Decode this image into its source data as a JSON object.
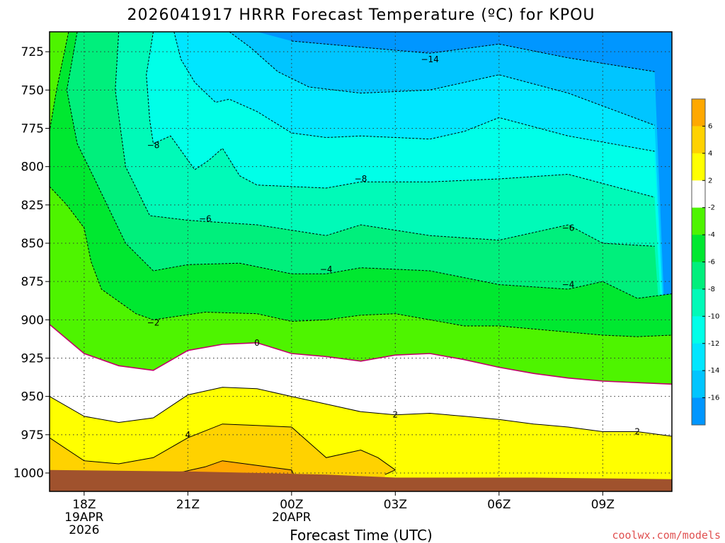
{
  "chart_data": {
    "type": "heatmap",
    "title": "2026041917 HRRR Forecast Temperature (ºC) for KPOU",
    "xlabel": "Forecast Time (UTC)",
    "ylabel": "",
    "x_ticks": [
      {
        "hour": 1,
        "lines": [
          "18Z",
          "19APR",
          "2026"
        ]
      },
      {
        "hour": 4,
        "lines": [
          "21Z"
        ]
      },
      {
        "hour": 7,
        "lines": [
          "00Z",
          "20APR"
        ]
      },
      {
        "hour": 10,
        "lines": [
          "03Z"
        ]
      },
      {
        "hour": 13,
        "lines": [
          "06Z"
        ]
      },
      {
        "hour": 16,
        "lines": [
          "09Z"
        ]
      }
    ],
    "xlim": [
      0,
      18
    ],
    "y_ticks": [
      725,
      750,
      775,
      800,
      825,
      850,
      875,
      900,
      925,
      950,
      975,
      1000
    ],
    "ylim": [
      712,
      1012
    ],
    "colorbar_labels": [
      "6",
      "4",
      "2",
      "-2",
      "-4",
      "-6",
      "-8",
      "-10",
      "-12",
      "-14",
      "-16"
    ],
    "colorbar_colors": [
      "#ffa800",
      "#ffd200",
      "#ffff00",
      "#ffffff",
      "#4ef400",
      "#00e830",
      "#00ef7c",
      "#00fab8",
      "#00ffe8",
      "#00e6ff",
      "#00c5ff",
      "#0096ff"
    ],
    "contours": [
      {
        "level": -14,
        "color": "#000000",
        "dashed": true,
        "points": [
          [
            7,
            718
          ],
          [
            9,
            722
          ],
          [
            11,
            726
          ],
          [
            13,
            720
          ],
          [
            15,
            729
          ],
          [
            17.5,
            738
          ]
        ]
      },
      {
        "level": -12,
        "color": "#000000",
        "dashed": true,
        "points": [
          [
            5.2,
            712
          ],
          [
            5.8,
            722
          ],
          [
            6.6,
            738
          ],
          [
            7.5,
            748
          ],
          [
            9,
            752
          ],
          [
            11,
            750
          ],
          [
            13,
            740
          ],
          [
            15,
            752
          ],
          [
            17.5,
            773
          ]
        ]
      },
      {
        "level": -10,
        "color": "#000000",
        "dashed": true,
        "points": [
          [
            3.6,
            712
          ],
          [
            3.8,
            730
          ],
          [
            4.2,
            745
          ],
          [
            4.8,
            758
          ],
          [
            5.2,
            756
          ],
          [
            6,
            764
          ],
          [
            7,
            778
          ],
          [
            8,
            781
          ],
          [
            9,
            780
          ],
          [
            11,
            782
          ],
          [
            12,
            777
          ],
          [
            13,
            768
          ],
          [
            15,
            780
          ],
          [
            17.5,
            790
          ]
        ]
      },
      {
        "level": -8,
        "color": "#000000",
        "dashed": true,
        "points": [
          [
            3,
            712
          ],
          [
            2.8,
            740
          ],
          [
            2.9,
            770
          ],
          [
            3,
            785
          ],
          [
            3.5,
            780
          ],
          [
            4.2,
            802
          ],
          [
            4.6,
            796
          ],
          [
            5,
            788
          ],
          [
            5.5,
            806
          ],
          [
            6,
            812
          ],
          [
            8,
            814
          ],
          [
            9,
            810
          ],
          [
            11,
            810
          ],
          [
            13,
            808
          ],
          [
            15,
            805
          ],
          [
            17.5,
            820
          ]
        ]
      },
      {
        "level": -6,
        "color": "#000000",
        "dashed": true,
        "points": [
          [
            2,
            712
          ],
          [
            1.9,
            750
          ],
          [
            2.2,
            800
          ],
          [
            2.9,
            832
          ],
          [
            4,
            835
          ],
          [
            6,
            838
          ],
          [
            8,
            845
          ],
          [
            9,
            838
          ],
          [
            11,
            845
          ],
          [
            13,
            848
          ],
          [
            15,
            838
          ],
          [
            16,
            850
          ],
          [
            17.5,
            852
          ]
        ]
      },
      {
        "level": -4,
        "color": "#000000",
        "dashed": true,
        "points": [
          [
            0.8,
            712
          ],
          [
            0.5,
            750
          ],
          [
            0.8,
            785
          ],
          [
            1.3,
            808
          ],
          [
            2.2,
            850
          ],
          [
            3,
            868
          ],
          [
            4,
            864
          ],
          [
            5.5,
            863
          ],
          [
            7,
            870
          ],
          [
            8,
            870
          ],
          [
            9,
            866
          ],
          [
            11,
            868
          ],
          [
            13,
            877
          ],
          [
            15,
            880
          ],
          [
            16,
            875
          ],
          [
            17,
            886
          ],
          [
            18,
            883
          ]
        ]
      },
      {
        "level": -2,
        "color": "#000000",
        "dashed": true,
        "points": [
          [
            0,
            777
          ],
          [
            0.2,
            750
          ],
          [
            0.55,
            712
          ]
        ]
      },
      {
        "level": -2,
        "color": "#000000",
        "dashed": true,
        "points": [
          [
            0,
            813
          ],
          [
            0.5,
            825
          ],
          [
            1,
            840
          ],
          [
            1.2,
            862
          ],
          [
            1.5,
            880
          ],
          [
            2.5,
            896
          ],
          [
            3,
            900
          ],
          [
            4.5,
            895
          ],
          [
            6,
            896
          ],
          [
            7,
            901
          ],
          [
            8,
            900
          ],
          [
            9,
            897
          ],
          [
            10,
            896
          ],
          [
            11,
            900
          ],
          [
            12,
            904
          ],
          [
            13,
            904
          ],
          [
            14,
            906
          ],
          [
            15,
            908
          ],
          [
            16,
            910
          ],
          [
            17,
            911
          ],
          [
            18,
            910
          ]
        ]
      },
      {
        "level": 0,
        "color": "#c0006a",
        "dashed": false,
        "points": [
          [
            0,
            903
          ],
          [
            1,
            922
          ],
          [
            2,
            930
          ],
          [
            3,
            933
          ],
          [
            4,
            920
          ],
          [
            5,
            916
          ],
          [
            6,
            915
          ],
          [
            7,
            922
          ],
          [
            8,
            924
          ],
          [
            9,
            927
          ],
          [
            10,
            923
          ],
          [
            11,
            922
          ],
          [
            12,
            926
          ],
          [
            13,
            931
          ],
          [
            14,
            935
          ],
          [
            15,
            938
          ],
          [
            16,
            940
          ],
          [
            17,
            941
          ],
          [
            18,
            942
          ]
        ]
      },
      {
        "level": 2,
        "color": "#000000",
        "dashed": false,
        "points": [
          [
            0,
            950
          ],
          [
            1,
            963
          ],
          [
            2,
            967
          ],
          [
            3,
            964
          ],
          [
            4,
            949
          ],
          [
            5,
            944
          ],
          [
            6,
            945
          ],
          [
            7,
            950
          ],
          [
            8,
            955
          ],
          [
            9,
            960
          ],
          [
            10,
            962
          ],
          [
            11,
            961
          ],
          [
            12,
            963
          ],
          [
            13,
            965
          ],
          [
            14,
            968
          ],
          [
            15,
            970
          ],
          [
            16,
            973
          ],
          [
            17,
            973
          ],
          [
            18,
            976
          ]
        ]
      },
      {
        "level": 4,
        "color": "#000000",
        "dashed": false,
        "points": [
          [
            0,
            977
          ],
          [
            1,
            992
          ],
          [
            2,
            994
          ],
          [
            3,
            990
          ],
          [
            4,
            977
          ],
          [
            5,
            968
          ],
          [
            6,
            969
          ],
          [
            7,
            970
          ],
          [
            7.5,
            980
          ],
          [
            8,
            990
          ],
          [
            9,
            985
          ],
          [
            9.5,
            990
          ],
          [
            10,
            998
          ],
          [
            9.7,
            1001
          ]
        ]
      },
      {
        "level": 6,
        "color": "#000000",
        "dashed": false,
        "points": [
          [
            3.7,
            1000
          ],
          [
            4.5,
            996
          ],
          [
            5,
            992
          ],
          [
            6,
            995
          ],
          [
            7,
            998
          ],
          [
            7.1,
            1003
          ]
        ]
      }
    ],
    "contour_labels": [
      {
        "text": "−14",
        "hour": 11,
        "p": 730
      },
      {
        "text": "−8",
        "hour": 3,
        "p": 786
      },
      {
        "text": "−8",
        "hour": 9,
        "p": 808
      },
      {
        "text": "−6",
        "hour": 4.5,
        "p": 834
      },
      {
        "text": "−6",
        "hour": 15,
        "p": 840
      },
      {
        "text": "−4",
        "hour": 8,
        "p": 867
      },
      {
        "text": "−4",
        "hour": 15,
        "p": 877
      },
      {
        "text": "−2",
        "hour": 3,
        "p": 902
      },
      {
        "text": "0",
        "hour": 6,
        "p": 915
      },
      {
        "text": "2",
        "hour": 10,
        "p": 962
      },
      {
        "text": "2",
        "hour": 17,
        "p": 973
      },
      {
        "text": "4",
        "hour": 4,
        "p": 975
      }
    ],
    "ground_top": [
      [
        0,
        998
      ],
      [
        4,
        999
      ],
      [
        8,
        1001
      ],
      [
        10,
        1003
      ],
      [
        14,
        1003
      ],
      [
        18,
        1004
      ]
    ],
    "credit": "coolwx.com/models"
  }
}
